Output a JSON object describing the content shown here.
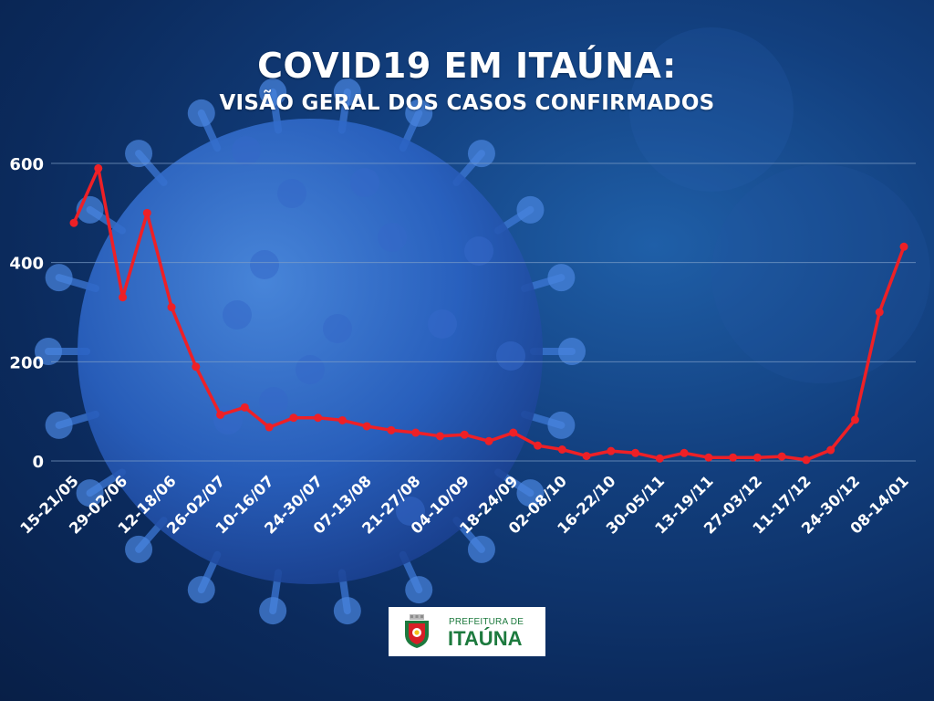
{
  "header": {
    "title": "COVID19 EM ITAÚNA:",
    "subtitle": "VISÃO GERAL DOS CASOS CONFIRMADOS"
  },
  "logo": {
    "line1": "PREFEITURA DE",
    "line2": "ITAÚNA"
  },
  "colors": {
    "line": "#ee2026",
    "grid": "#7f9fc8",
    "text": "#ffffff",
    "logo_green": "#1d7a3e"
  },
  "chart_data": {
    "type": "line",
    "title": "COVID19 EM ITAÚNA: VISÃO GERAL DOS CASOS CONFIRMADOS",
    "xlabel": "",
    "ylabel": "",
    "ylim": [
      0,
      650
    ],
    "yticks": [
      0,
      200,
      400,
      600
    ],
    "grid": true,
    "x_tick_labels": [
      "15-21/05",
      "29-02/06",
      "12-18/06",
      "26-02/07",
      "10-16/07",
      "24-30/07",
      "07-13/08",
      "21-27/08",
      "04-10/09",
      "18-24/09",
      "02-08/10",
      "16-22/10",
      "30-05/11",
      "13-19/11",
      "27-03/12",
      "11-17/12",
      "24-30/12",
      "08-14/01"
    ],
    "series": [
      {
        "values": [
          480,
          590,
          330,
          500,
          310,
          190,
          93,
          108,
          68,
          87,
          87,
          82,
          70,
          62,
          57,
          50,
          53,
          40,
          57,
          31,
          23,
          10,
          20,
          16,
          5,
          16,
          7,
          7,
          7,
          9,
          2,
          22,
          83,
          300,
          432
        ]
      }
    ]
  }
}
